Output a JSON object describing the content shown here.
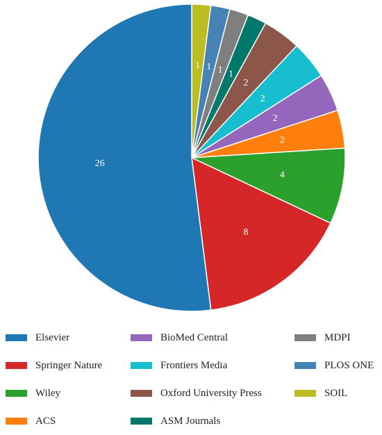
{
  "chart_data": {
    "type": "pie",
    "title": "",
    "start_angle_deg": 90,
    "direction": "clockwise",
    "legend_placement": "bottom",
    "slices": [
      {
        "label": "SOIL",
        "value": 1,
        "color": "#bcbd22"
      },
      {
        "label": "PLOS ONE",
        "value": 1,
        "color": "#4682b4"
      },
      {
        "label": "MDPI",
        "value": 1,
        "color": "#7f7f7f"
      },
      {
        "label": "ASM Journals",
        "value": 1,
        "color": "#00796b"
      },
      {
        "label": "Oxford University Press",
        "value": 2,
        "color": "#8c564b"
      },
      {
        "label": "Frontiers Media",
        "value": 2,
        "color": "#17becf"
      },
      {
        "label": "BioMed Central",
        "value": 2,
        "color": "#9467bd"
      },
      {
        "label": "ACS",
        "value": 2,
        "color": "#ff7f0e"
      },
      {
        "label": "Wiley",
        "value": 4,
        "color": "#2ca02c"
      },
      {
        "label": "Springer Nature",
        "value": 8,
        "color": "#d62728"
      },
      {
        "label": "Elsevier",
        "value": 26,
        "color": "#1f77b4"
      }
    ],
    "legend": [
      [
        "Elsevier",
        "Springer Nature",
        "Wiley",
        "ACS"
      ],
      [
        "BioMed Central",
        "Frontiers Media",
        "Oxford University Press",
        "ASM Journals"
      ],
      [
        "MDPI",
        "PLOS ONE",
        "SOIL"
      ]
    ]
  }
}
